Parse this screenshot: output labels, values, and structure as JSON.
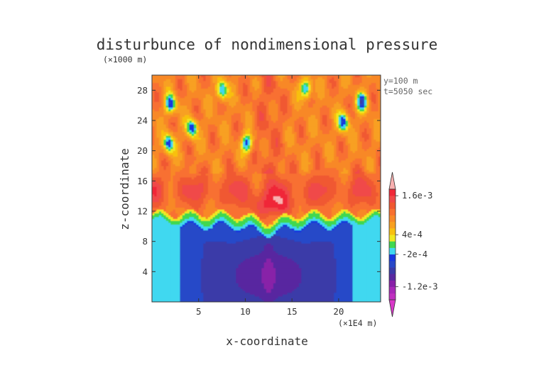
{
  "chart_data": {
    "type": "heatmap",
    "title": "disturbunce of nondimensional pressure",
    "xlabel": "x-coordinate",
    "ylabel": "z-coordinate",
    "x_unit": "(×1E4 m)",
    "y_unit": "(×1000 m)",
    "info": [
      "y=100 m",
      "t=5050 sec"
    ],
    "xlim": [
      0,
      24.5
    ],
    "ylim": [
      0,
      30
    ],
    "x_ticks": [
      5,
      10,
      15,
      20
    ],
    "y_ticks": [
      4,
      8,
      12,
      16,
      20,
      24,
      28
    ],
    "colorbar": {
      "labels": [
        "1.6e-3",
        "4e-4",
        "-2e-4",
        "-1.2e-3"
      ],
      "levels": [
        "< -1.6e-3",
        "-1.6e-3",
        "-1.4e-3",
        "-1.2e-3",
        "-1.0e-3",
        "-8e-4",
        "-6e-4",
        "-4e-4",
        "-2e-4",
        "0",
        "2e-4",
        "4e-4",
        "6e-4",
        "8e-4",
        "1.0e-3",
        "1.2e-3",
        "1.4e-3",
        "1.6e-3",
        "> 1.8e-3"
      ],
      "colors": [
        "#d838c8",
        "#c030c0",
        "#a828b8",
        "#8820a8",
        "#5828a0",
        "#3a3aa8",
        "#2848c8",
        "#1838e0",
        "#40d8f0",
        "#40d850",
        "#f0e820",
        "#f8c010",
        "#f8a020",
        "#f88828",
        "#f87030",
        "#f05830",
        "#f04848",
        "#f02838",
        "#f8b0b0"
      ]
    },
    "annotation": "positive (orange/red) perturbation above z≈11, negative (blue/purple) below; cyan margins near x<3 and x>21"
  }
}
